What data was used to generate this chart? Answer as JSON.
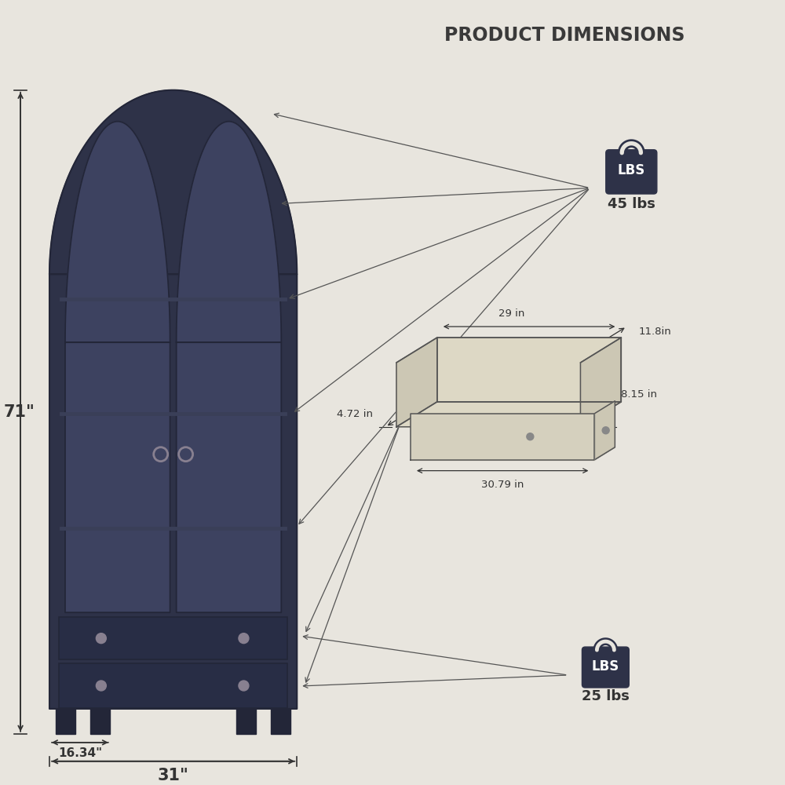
{
  "bg_color": "#e8e5de",
  "title": "PRODUCT DIMENSIONS",
  "title_fontsize": 17,
  "title_color": "#3a3a3a",
  "cabinet_color": "#2e3248",
  "cabinet_dark": "#232638",
  "glass_color": "#3d4260",
  "line_color": "#333333",
  "annotation_fontsize": 10,
  "weight_icon_color": "#2e3248",
  "dimensions": {
    "height": "71\"",
    "width": "31\"",
    "depth": "16.34\""
  },
  "drawer_dims": {
    "inner_width": "29 in",
    "outer_width": "11.8in",
    "height": "8.15 in",
    "depth": "4.72 in",
    "outer_length": "30.79 in"
  },
  "weight_shelf": "45 lbs",
  "weight_drawer": "25 lbs"
}
